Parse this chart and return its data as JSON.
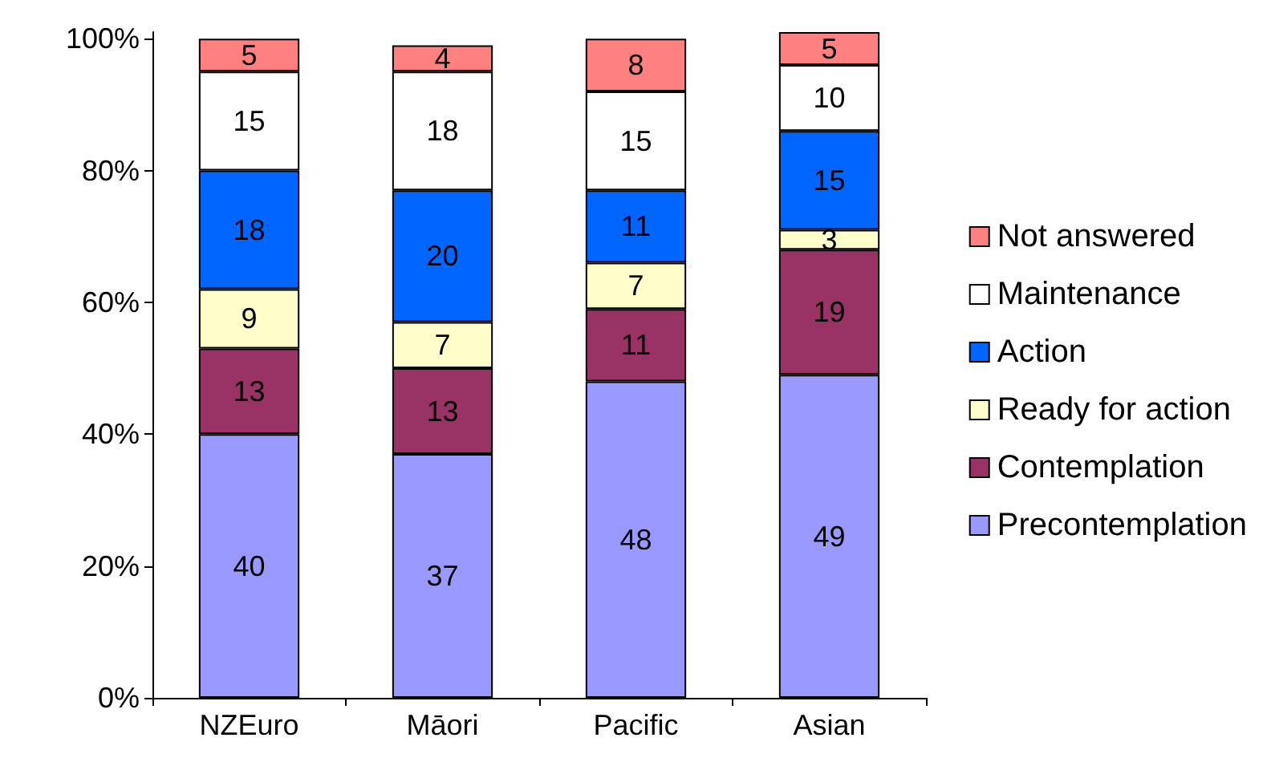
{
  "chart_data": {
    "type": "bar",
    "stacked": true,
    "categories": [
      "NZEuro",
      "Māori",
      "Pacific",
      "Asian"
    ],
    "series": [
      {
        "name": "Precontemplation",
        "color": "#9999ff",
        "values": [
          40,
          37,
          48,
          49
        ]
      },
      {
        "name": "Contemplation",
        "color": "#993366",
        "values": [
          13,
          13,
          11,
          19
        ]
      },
      {
        "name": "Ready for action",
        "color": "#ffffcc",
        "values": [
          9,
          7,
          7,
          3
        ]
      },
      {
        "name": "Action",
        "color": "#0066ff",
        "values": [
          18,
          20,
          11,
          15
        ]
      },
      {
        "name": "Maintenance",
        "color": "#ffffff",
        "values": [
          15,
          18,
          15,
          10
        ]
      },
      {
        "name": "Not answered",
        "color": "#ff8080",
        "values": [
          5,
          4,
          8,
          5
        ]
      }
    ],
    "ylim": [
      0,
      101
    ],
    "yticks": [
      {
        "value": 0,
        "label": "0%"
      },
      {
        "value": 20,
        "label": "20%"
      },
      {
        "value": 40,
        "label": "40%"
      },
      {
        "value": 60,
        "label": "60%"
      },
      {
        "value": 80,
        "label": "80%"
      },
      {
        "value": 100,
        "label": "100%"
      }
    ],
    "data_labels": true,
    "grid": false,
    "legend": "right"
  }
}
